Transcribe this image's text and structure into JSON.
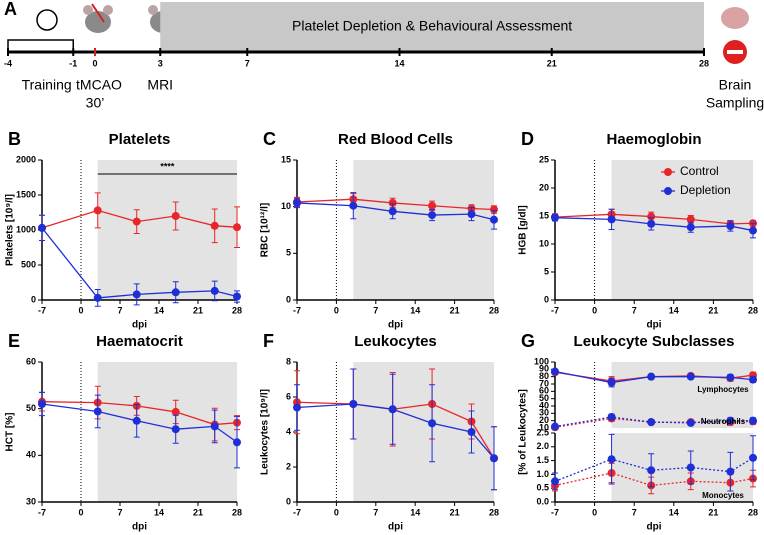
{
  "timeline": {
    "label": "A",
    "xlim": [
      -4,
      28
    ],
    "ticks": [
      -4,
      -1,
      0,
      3,
      7,
      14,
      21,
      28
    ],
    "shaded_range": [
      3,
      28
    ],
    "phase": "Platelet Depletion & Behavioural Assessment",
    "training": "Training",
    "tmcao": "tMCAO",
    "duration": "30’",
    "mri": "MRI",
    "endpoint": [
      "Brain",
      "Sampling"
    ]
  },
  "chart_data": [
    {
      "type": "line",
      "label": "B",
      "title": "Platelets",
      "ylabel": "Platelets [10⁹/l]",
      "xlabel": "dpi",
      "x": [
        -7,
        3,
        10,
        17,
        24,
        28
      ],
      "xlim": [
        -7,
        28
      ],
      "xticks": [
        -7,
        0,
        7,
        14,
        21,
        28
      ],
      "ylim": [
        0,
        2000
      ],
      "yticks": [
        0,
        500,
        1000,
        1500,
        2000
      ],
      "shaded_range": [
        3,
        28
      ],
      "vline": 0,
      "annotation": {
        "text": "****",
        "x": [
          3,
          28
        ],
        "y": 1800
      },
      "series": [
        {
          "color": "#e8262a",
          "values": [
            1030,
            1280,
            1120,
            1200,
            1060,
            1040
          ],
          "errors": [
            180,
            250,
            170,
            200,
            240,
            290
          ]
        },
        {
          "color": "#1f2fd6",
          "values": [
            1030,
            30,
            80,
            110,
            130,
            50
          ],
          "errors": [
            180,
            120,
            150,
            150,
            140,
            80
          ]
        }
      ]
    },
    {
      "type": "line",
      "label": "C",
      "title": "Red Blood Cells",
      "ylabel": "RBC [10¹²/l]",
      "xlabel": "dpi",
      "x": [
        -7,
        3,
        10,
        17,
        24,
        28
      ],
      "xlim": [
        -7,
        28
      ],
      "xticks": [
        -7,
        0,
        7,
        14,
        21,
        28
      ],
      "ylim": [
        0,
        15
      ],
      "yticks": [
        0,
        5,
        10,
        15
      ],
      "shaded_range": [
        3,
        28
      ],
      "vline": 0,
      "series": [
        {
          "color": "#e8262a",
          "values": [
            10.5,
            10.8,
            10.4,
            10.1,
            9.8,
            9.7
          ],
          "errors": [
            0.5,
            0.6,
            0.5,
            0.5,
            0.4,
            0.4
          ]
        },
        {
          "color": "#1f2fd6",
          "values": [
            10.4,
            10.1,
            9.5,
            9.1,
            9.2,
            8.6
          ],
          "errors": [
            0.5,
            1.4,
            0.8,
            0.6,
            0.7,
            1.0
          ]
        }
      ]
    },
    {
      "type": "line",
      "label": "D",
      "title": "Haemoglobin",
      "ylabel": "HGB [g/dl]",
      "xlabel": "dpi",
      "x": [
        -7,
        3,
        10,
        17,
        24,
        28
      ],
      "xlim": [
        -7,
        28
      ],
      "xticks": [
        -7,
        0,
        7,
        14,
        21,
        28
      ],
      "ylim": [
        0,
        25
      ],
      "yticks": [
        0,
        5,
        10,
        15,
        20,
        25
      ],
      "shaded_range": [
        3,
        28
      ],
      "vline": 0,
      "legend": "upper right",
      "series": [
        {
          "name": "Control",
          "color": "#e8262a",
          "values": [
            14.8,
            15.3,
            14.9,
            14.4,
            13.6,
            13.7
          ],
          "errors": [
            0.6,
            0.9,
            0.8,
            0.7,
            0.6,
            0.5
          ]
        },
        {
          "name": "Depletion",
          "color": "#1f2fd6",
          "values": [
            14.7,
            14.4,
            13.6,
            13.0,
            13.2,
            12.4
          ],
          "errors": [
            0.6,
            1.8,
            1.1,
            0.9,
            0.9,
            1.3
          ]
        }
      ]
    },
    {
      "type": "line",
      "label": "E",
      "title": "Haematocrit",
      "ylabel": "HCT [%]",
      "xlabel": "dpi",
      "x": [
        -7,
        3,
        10,
        17,
        24,
        28
      ],
      "xlim": [
        -7,
        28
      ],
      "xticks": [
        -7,
        0,
        7,
        14,
        21,
        28
      ],
      "ylim": [
        30,
        60
      ],
      "yticks": [
        30,
        40,
        50,
        60
      ],
      "shaded_range": [
        3,
        28
      ],
      "vline": 0,
      "series": [
        {
          "color": "#e8262a",
          "values": [
            51.5,
            51.3,
            50.6,
            49.3,
            46.6,
            47.0
          ],
          "errors": [
            2,
            3.5,
            2,
            2.5,
            3.5,
            1.5
          ]
        },
        {
          "color": "#1f2fd6",
          "values": [
            51,
            49.4,
            47.4,
            45.6,
            46.2,
            42.8
          ],
          "errors": [
            2.5,
            3.5,
            3.5,
            3,
            3.5,
            5.5
          ]
        }
      ]
    },
    {
      "type": "line",
      "label": "F",
      "title": "Leukocytes",
      "ylabel": "Leukocytes [10⁹/l]",
      "xlabel": "dpi",
      "x": [
        -7,
        3,
        10,
        17,
        24,
        28
      ],
      "xlim": [
        -7,
        28
      ],
      "xticks": [
        -7,
        0,
        7,
        14,
        21,
        28
      ],
      "ylim": [
        0,
        8
      ],
      "yticks": [
        0,
        2,
        4,
        6,
        8
      ],
      "shaded_range": [
        3,
        28
      ],
      "vline": 0,
      "series": [
        {
          "color": "#e8262a",
          "values": [
            5.7,
            5.6,
            5.3,
            5.6,
            4.6,
            2.5
          ],
          "errors": [
            1.8,
            2,
            2.1,
            2,
            1,
            1.8
          ]
        },
        {
          "color": "#1f2fd6",
          "values": [
            5.4,
            5.6,
            5.3,
            4.5,
            4.0,
            2.5
          ],
          "errors": [
            1.3,
            2,
            2,
            2.2,
            1.2,
            1.8
          ]
        }
      ]
    },
    {
      "type": "line",
      "label": "G",
      "title": "Leukocyte Subclasses",
      "ylabel": "[% of Leukocytes]",
      "x": [
        -7,
        3,
        10,
        17,
        24,
        28
      ],
      "xlim": [
        -7,
        28
      ],
      "ylim": [
        10,
        100
      ],
      "yticks": [
        10,
        20,
        30,
        40,
        50,
        60,
        70,
        80,
        90,
        100
      ],
      "shaded_range": [
        3,
        28
      ],
      "vline": 0,
      "groups": [
        {
          "label": "Lymphocytes",
          "dotted": false,
          "series": [
            {
              "color": "#e8262a",
              "values": [
                86,
                74,
                80,
                81,
                78,
                82
              ],
              "errors": [
                3,
                6,
                3,
                3,
                4,
                4
              ]
            },
            {
              "color": "#1f2fd6",
              "values": [
                87,
                72,
                80,
                80,
                79,
                76
              ],
              "errors": [
                3,
                6,
                3,
                3,
                4,
                4
              ]
            }
          ]
        },
        {
          "label": "Neutrophils",
          "dotted": true,
          "series": [
            {
              "color": "#e8262a",
              "values": [
                11,
                23,
                18,
                18,
                18,
                19
              ],
              "errors": [
                2,
                4,
                2,
                2,
                4,
                4
              ]
            },
            {
              "color": "#1f2fd6",
              "values": [
                12,
                25,
                18,
                17,
                20,
                20
              ],
              "errors": [
                2,
                4,
                2,
                2,
                4,
                4
              ]
            }
          ]
        }
      ]
    },
    {
      "type": "line",
      "xlabel": "dpi",
      "x": [
        -7,
        3,
        10,
        17,
        24,
        28
      ],
      "xlim": [
        -7,
        28
      ],
      "xticks": [
        -7,
        0,
        7,
        14,
        21,
        28
      ],
      "ylim": [
        0,
        2.5
      ],
      "yticks": [
        {
          "value": 0,
          "label": "0.0"
        },
        0.5,
        {
          "value": 1,
          "label": "1.0"
        },
        1.5,
        {
          "value": 2,
          "label": "2.0"
        },
        2.5
      ],
      "shaded_range": [
        3,
        28
      ],
      "vline": 0,
      "groups": [
        {
          "label": "Monocytes",
          "dotted": true,
          "series": [
            {
              "color": "#e8262a",
              "values": [
                0.6,
                1.05,
                0.6,
                0.75,
                0.7,
                0.85
              ],
              "errors": [
                0.2,
                0.35,
                0.3,
                0.3,
                0.3,
                0.3
              ]
            },
            {
              "color": "#1f2fd6",
              "values": [
                0.75,
                1.55,
                1.15,
                1.25,
                1.1,
                1.6
              ],
              "errors": [
                0.3,
                0.9,
                0.6,
                0.6,
                0.7,
                0.8
              ]
            }
          ]
        }
      ]
    }
  ]
}
